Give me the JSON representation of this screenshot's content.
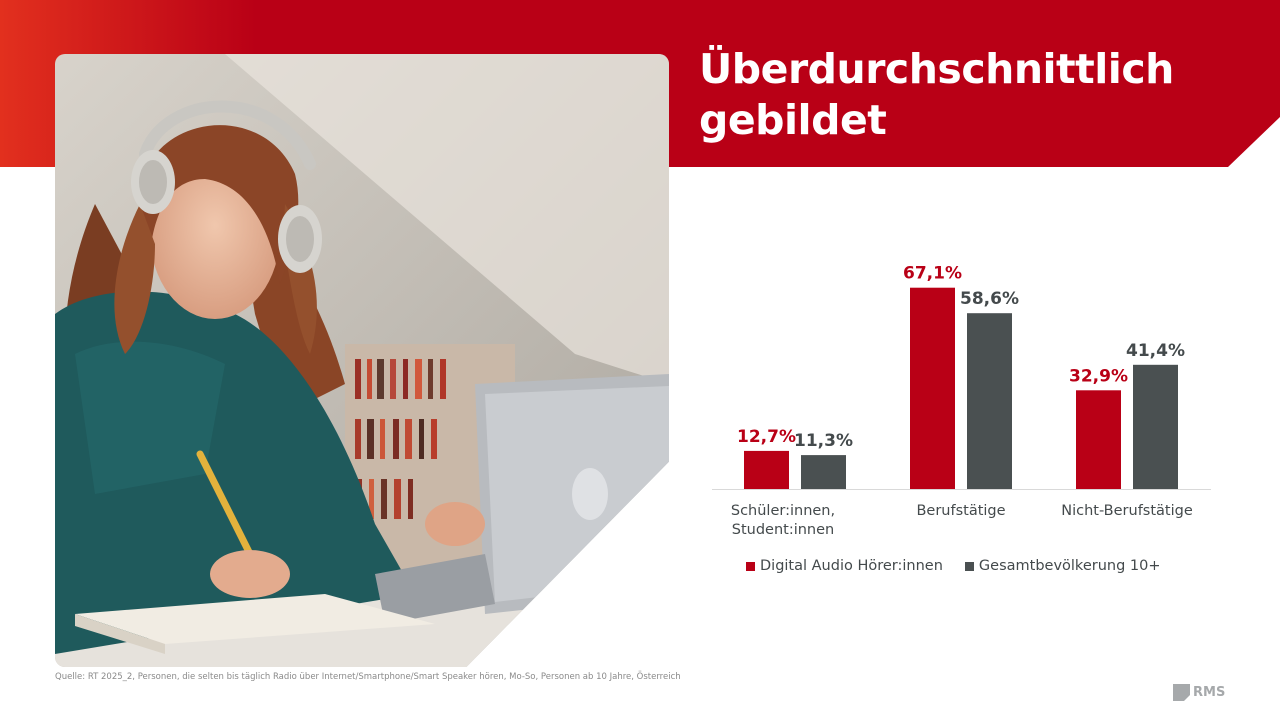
{
  "title_lines": [
    "Überdurchschnittlich",
    "gebildet"
  ],
  "colors": {
    "brand_red": "#b90016",
    "banner_left": "#e2301e",
    "series_grey": "#4a5051",
    "label_grey": "#444a4c",
    "axis": "#d9d9d9"
  },
  "chart_data": {
    "type": "bar",
    "categories": [
      [
        "Schüler:innen,",
        "Student:innen"
      ],
      [
        "Berufstätige"
      ],
      [
        "Nicht-Berufstätige"
      ]
    ],
    "series": [
      {
        "name": "Digital Audio Hörer:innen",
        "values": [
          12.7,
          67.1,
          32.9
        ],
        "labels": [
          "12,7%",
          "67,1%",
          "32,9%"
        ],
        "color": "#b90016"
      },
      {
        "name": "Gesamtbevölkerung 10+",
        "values": [
          11.3,
          58.6,
          41.4
        ],
        "labels": [
          "11,3%",
          "58,6%",
          "41,4%"
        ],
        "color": "#4a5051"
      }
    ],
    "ylim": [
      0,
      100
    ],
    "grid": false,
    "legend_position": "bottom"
  },
  "source": "Quelle: RT 2025_2, Personen, die selten bis täglich Radio über Internet/Smartphone/Smart Speaker hören, Mo-So, Personen ab 10 Jahre, Österreich",
  "logo_text": "RMS",
  "photo_icon": "student-with-headphones-photo"
}
